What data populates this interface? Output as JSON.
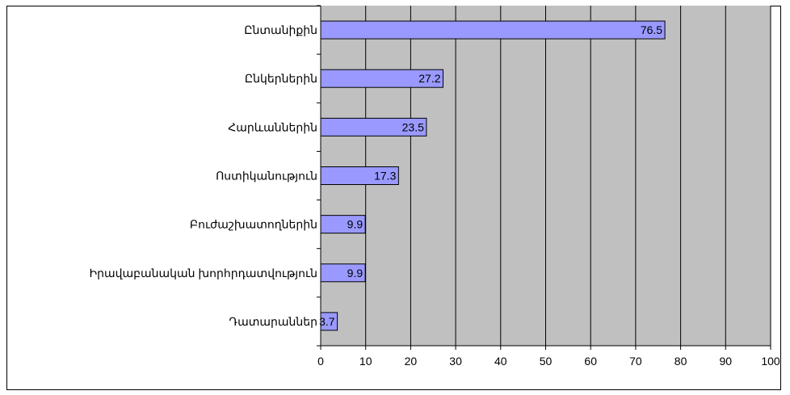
{
  "chart_data": {
    "type": "bar",
    "orientation": "horizontal",
    "categories": [
      "Ընտանիքին",
      "Ընկերներին",
      "Հարևաններին",
      "Ոստիկանություն",
      "Բուժաշխատողներին",
      "Իրավաբանական խորհրդատվություն",
      "Դատարաններ"
    ],
    "values": [
      76.5,
      27.2,
      23.5,
      17.3,
      9.9,
      9.9,
      3.7
    ],
    "value_labels": [
      "76.5",
      "27.2",
      "23.5",
      "17.3",
      "9.9",
      "9.9",
      "3.7"
    ],
    "xlim": [
      0,
      100
    ],
    "x_ticks": [
      "0",
      "10",
      "20",
      "30",
      "40",
      "50",
      "60",
      "70",
      "80",
      "90",
      "100"
    ],
    "grid": true,
    "legend": "none",
    "colors": {
      "plot_background": "#c0c0c0",
      "bar_fill": "#9999ff",
      "bar_border": "#000000",
      "grid": "#000000"
    }
  }
}
